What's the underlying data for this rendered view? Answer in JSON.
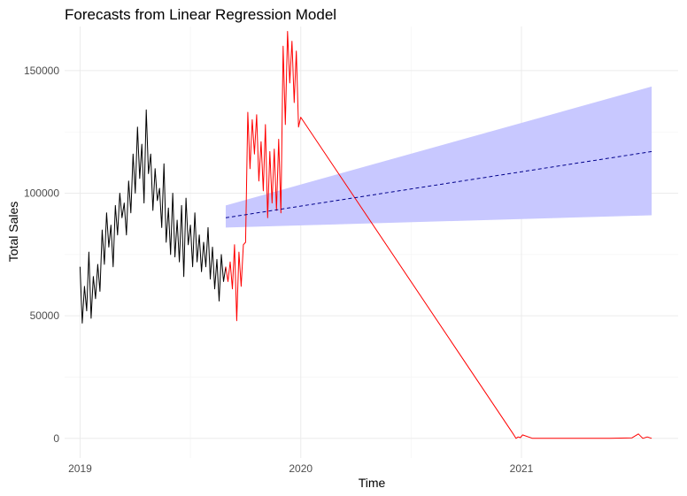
{
  "chart_data": {
    "type": "line",
    "title": "Forecasts from Linear Regression Model",
    "xlabel": "Time",
    "ylabel": "Total Sales",
    "xlim": [
      2018.93,
      2021.71
    ],
    "ylim": [
      -8000,
      168000
    ],
    "x_ticks": [
      2019,
      2020,
      2021
    ],
    "x_tick_labels": [
      "2019",
      "2020",
      "2021"
    ],
    "y_ticks": [
      0,
      50000,
      100000,
      150000
    ],
    "y_tick_labels": [
      "0",
      "50000",
      "100000",
      "150000"
    ],
    "grid": true,
    "legend": "none",
    "series": [
      {
        "role": "history",
        "color": "#000000",
        "style": "solid",
        "x": [
          2019.0,
          2019.01,
          2019.02,
          2019.03,
          2019.04,
          2019.05,
          2019.06,
          2019.07,
          2019.08,
          2019.09,
          2019.1,
          2019.11,
          2019.12,
          2019.13,
          2019.14,
          2019.15,
          2019.16,
          2019.17,
          2019.18,
          2019.19,
          2019.2,
          2019.21,
          2019.22,
          2019.23,
          2019.24,
          2019.25,
          2019.26,
          2019.27,
          2019.28,
          2019.29,
          2019.3,
          2019.31,
          2019.32,
          2019.33,
          2019.34,
          2019.35,
          2019.36,
          2019.37,
          2019.38,
          2019.39,
          2019.4,
          2019.41,
          2019.42,
          2019.43,
          2019.44,
          2019.45,
          2019.46,
          2019.47,
          2019.48,
          2019.49,
          2019.5,
          2019.51,
          2019.52,
          2019.53,
          2019.54,
          2019.55,
          2019.56,
          2019.57,
          2019.58,
          2019.59,
          2019.6,
          2019.61,
          2019.62,
          2019.63,
          2019.64,
          2019.65,
          2019.66
        ],
        "y": [
          70000,
          47000,
          62000,
          52000,
          76000,
          49000,
          66000,
          57000,
          71000,
          60000,
          85000,
          71000,
          92000,
          78000,
          87000,
          70000,
          95000,
          83000,
          100000,
          90000,
          96000,
          83000,
          105000,
          92000,
          116000,
          100000,
          127000,
          106000,
          120000,
          96000,
          134000,
          108000,
          116000,
          93000,
          110000,
          97000,
          102000,
          86000,
          112000,
          80000,
          94000,
          75000,
          100000,
          74000,
          89000,
          72000,
          95000,
          66000,
          98000,
          79000,
          87000,
          70000,
          92000,
          72000,
          83000,
          68000,
          80000,
          70000,
          86000,
          65000,
          78000,
          61000,
          73000,
          56000,
          75000,
          64000,
          70000
        ]
      },
      {
        "role": "actual",
        "color": "#ff0000",
        "style": "solid",
        "x": [
          2019.66,
          2019.67,
          2019.68,
          2019.69,
          2019.7,
          2019.71,
          2019.72,
          2019.73,
          2019.74,
          2019.75,
          2019.76,
          2019.77,
          2019.78,
          2019.79,
          2019.8,
          2019.81,
          2019.82,
          2019.83,
          2019.84,
          2019.85,
          2019.86,
          2019.87,
          2019.88,
          2019.89,
          2019.9,
          2019.91,
          2019.92,
          2019.93,
          2019.94,
          2019.95,
          2019.96,
          2019.97,
          2019.98,
          2019.99,
          2020.0,
          2020.965,
          2020.975,
          2020.985,
          2020.995,
          2021.005,
          2021.05,
          2021.2,
          2021.4,
          2021.5,
          2021.53,
          2021.55,
          2021.57,
          2021.59
        ],
        "y": [
          70000,
          64000,
          72000,
          61000,
          79000,
          48000,
          76000,
          62000,
          79000,
          80000,
          133000,
          110000,
          130000,
          116000,
          132000,
          105000,
          121000,
          101000,
          128000,
          90000,
          117000,
          96000,
          118000,
          93000,
          122000,
          92000,
          160000,
          128000,
          166000,
          145000,
          162000,
          137000,
          158000,
          127000,
          131000,
          1500,
          0,
          600,
          300,
          1400,
          0,
          0,
          0,
          200,
          1800,
          0,
          600,
          0
        ]
      },
      {
        "role": "forecast-mean",
        "color": "#00008b",
        "style": "dashed",
        "x": [
          2019.66,
          2021.59
        ],
        "y": [
          90000,
          117000
        ]
      }
    ],
    "band": {
      "color": "#c8c8ff",
      "x": [
        2019.66,
        2021.59
      ],
      "lower": [
        86000,
        91000
      ],
      "upper": [
        95000,
        143500
      ]
    }
  }
}
